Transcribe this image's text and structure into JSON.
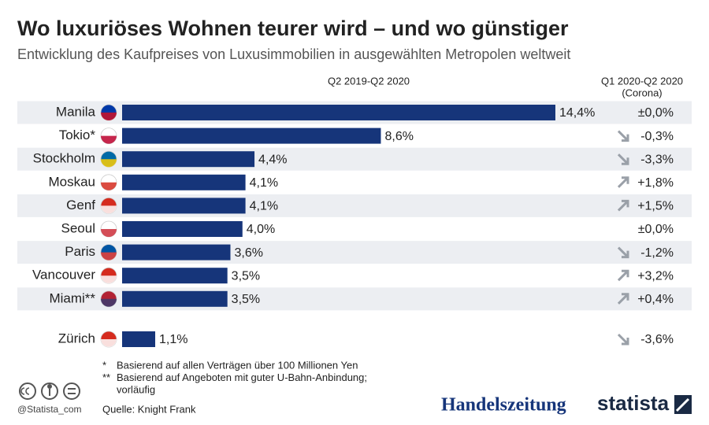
{
  "chart_data": {
    "type": "bar",
    "orientation": "horizontal",
    "title": "Wo luxuriöses Wohnen teurer wird – und wo günstiger",
    "subtitle": "Entwicklung des Kaufpreises von Luxusimmobilien in ausgewählten Metropolen weltweit",
    "column_headers": [
      "Q2 2019-Q2 2020",
      "Q1 2020-Q2 2020",
      "(Corona)"
    ],
    "categories": [
      "Manila",
      "Tokio*",
      "Stockholm",
      "Moskau",
      "Genf",
      "Seoul",
      "Paris",
      "Vancouver",
      "Miami**",
      "Zürich"
    ],
    "values": [
      14.4,
      8.6,
      4.4,
      4.1,
      4.1,
      4.0,
      3.6,
      3.5,
      3.5,
      1.1
    ],
    "value_labels": [
      "14,4%",
      "8,6%",
      "4,4%",
      "4,1%",
      "4,1%",
      "4,0%",
      "3,6%",
      "3,5%",
      "3,5%",
      "1,1%"
    ],
    "color": "#16357a",
    "change_values": [
      0.0,
      -0.3,
      -3.3,
      1.8,
      1.5,
      0.0,
      -1.2,
      3.2,
      0.4,
      -3.6
    ],
    "change_labels": [
      "±0,0%",
      "-0,3%",
      "-3,3%",
      "+1,8%",
      "+1,5%",
      "±0,0%",
      "-1,2%",
      "+3,2%",
      "+0,4%",
      "-3,6%"
    ],
    "footnotes": [
      {
        "marker": "*",
        "lines": [
          "Basierend auf allen Verträgen über 100 Millionen Yen"
        ]
      },
      {
        "marker": "**",
        "lines": [
          "Basierend auf Angeboten mit guter U-Bahn-Anbindung;",
          "vorläufig"
        ]
      }
    ],
    "source": "Quelle: Knight Frank",
    "handle": "@Statista_com",
    "logos": [
      "Handelszeitung",
      "statista"
    ]
  }
}
